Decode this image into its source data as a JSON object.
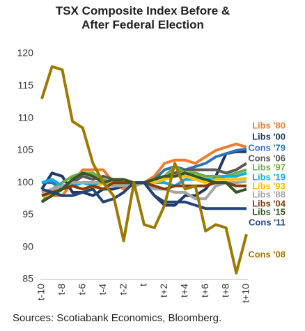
{
  "chart_data": {
    "type": "line",
    "title": "TSX Composite Index Before & After Federal Election",
    "source": "Sources: Scotiabank Economics, Bloomberg.",
    "categories": [
      "t-10",
      null,
      "t-8",
      null,
      "t-6",
      null,
      "t-4",
      null,
      "t-2",
      null,
      "t",
      null,
      "t+2",
      null,
      "t+4",
      null,
      "t+6",
      null,
      "t+8",
      null,
      "t+10"
    ],
    "ylim": [
      85,
      120
    ],
    "yticks": [
      85,
      90,
      95,
      100,
      105,
      110,
      115,
      120
    ],
    "grid": false,
    "series": [
      {
        "name": "Libs '80",
        "color": "#ED7D31",
        "values": [
          98,
          98,
          98,
          100,
          102,
          102,
          102,
          100,
          99,
          100,
          100,
          101,
          103,
          103.5,
          103.5,
          103,
          104,
          105,
          105.5,
          106,
          105.5
        ]
      },
      {
        "name": "Libs '00",
        "color": "#1F3864",
        "values": [
          99,
          101.5,
          101,
          98.5,
          98.5,
          98,
          99,
          99,
          99.5,
          99.5,
          100,
          98,
          96.5,
          96.5,
          98,
          98,
          99,
          101,
          104.5,
          104.8,
          104.8
        ]
      },
      {
        "name": "Cons '79",
        "color": "#2E75B6",
        "values": [
          100,
          100,
          99,
          99.5,
          100,
          100,
          100,
          100,
          100,
          100,
          100,
          100.5,
          102,
          102.5,
          102,
          102.5,
          103,
          104,
          104.5,
          105,
          105.2
        ]
      },
      {
        "name": "Cons '06",
        "color": "#595959",
        "values": [
          98,
          98.5,
          99,
          100,
          101,
          100.5,
          101,
          100.5,
          100,
          99.5,
          100,
          100.5,
          101,
          101.5,
          102,
          102,
          102,
          102,
          101.5,
          102,
          103
        ]
      },
      {
        "name": "Libs '97",
        "color": "#70AD47",
        "values": [
          97,
          99,
          100,
          101,
          101.5,
          101.5,
          100.5,
          100,
          99.5,
          100,
          100,
          100.5,
          101,
          102.5,
          101.5,
          101.5,
          101,
          101,
          101,
          101.5,
          102
        ]
      },
      {
        "name": "Libs '19",
        "color": "#00B0F0",
        "values": [
          100,
          100.5,
          99.5,
          99.5,
          100,
          99.5,
          100,
          100,
          100,
          100,
          100,
          100,
          100,
          99.5,
          100.5,
          100.5,
          100.5,
          100.5,
          101,
          101,
          101.5
        ]
      },
      {
        "name": "Libs '93",
        "color": "#FFC000",
        "values": [
          98,
          98,
          99,
          99.5,
          99,
          99,
          100,
          100,
          100,
          100,
          100,
          100,
          100.5,
          101,
          101,
          100.5,
          100,
          100.5,
          100.5,
          100.5,
          100.7
        ]
      },
      {
        "name": "Libs '88",
        "color": "#A5A5A5",
        "values": [
          98.5,
          99,
          99.5,
          100,
          100,
          100,
          100,
          99.5,
          99.5,
          99.5,
          100,
          99,
          99,
          98.5,
          98.5,
          97.5,
          97.5,
          99.5,
          100,
          100,
          100.2
        ]
      },
      {
        "name": "Libs '04",
        "color": "#843C0C",
        "values": [
          98,
          98.5,
          99,
          99.5,
          99,
          99.5,
          99,
          100,
          100,
          100,
          100,
          99.5,
          99,
          99.5,
          99.5,
          99.5,
          99.5,
          100,
          100,
          99.5,
          99.5
        ]
      },
      {
        "name": "Libs '15",
        "color": "#375623",
        "values": [
          97,
          98,
          99,
          100.5,
          101.5,
          101,
          100,
          100.5,
          100.5,
          100,
          100,
          100.5,
          101,
          101,
          101.5,
          101,
          100.5,
          100,
          100,
          98.5,
          99
        ]
      },
      {
        "name": "Cons '11",
        "color": "#264478",
        "values": [
          99,
          98.5,
          98,
          98,
          98.5,
          99,
          97,
          97.5,
          98.5,
          100,
          100,
          98,
          97,
          97,
          97,
          96.5,
          96,
          96,
          96,
          96,
          96
        ]
      },
      {
        "name": "Cons '08",
        "color": "#9C7A00",
        "values": [
          113,
          118,
          117.5,
          109.5,
          108.5,
          103,
          100,
          98,
          91,
          100,
          93.5,
          93,
          96.5,
          103,
          99,
          99.5,
          92.5,
          93.5,
          93,
          86,
          92
        ]
      }
    ]
  }
}
